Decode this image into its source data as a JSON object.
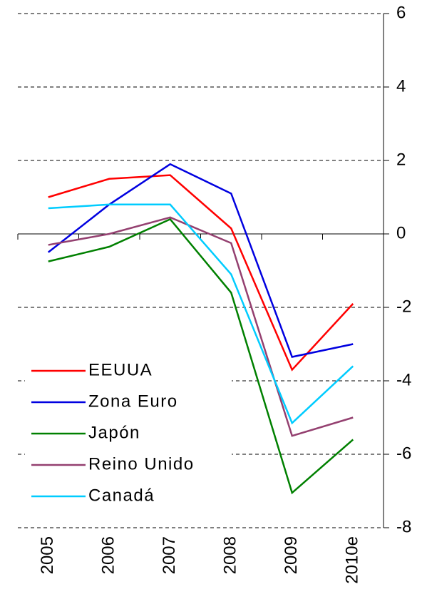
{
  "chart_data": {
    "type": "line",
    "categories": [
      "2005",
      "2006",
      "2007",
      "2008",
      "2009",
      "2010e"
    ],
    "series": [
      {
        "name": "EEUUA",
        "color": "#ff0000",
        "values": [
          1.0,
          1.5,
          1.6,
          0.15,
          -3.7,
          -1.9
        ]
      },
      {
        "name": "Zona Euro",
        "color": "#0000e0",
        "values": [
          -0.5,
          0.8,
          1.9,
          1.1,
          -3.35,
          -3.0
        ]
      },
      {
        "name": "Japón",
        "color": "#008000",
        "values": [
          -0.75,
          -0.35,
          0.4,
          -1.6,
          -7.05,
          -5.6
        ]
      },
      {
        "name": "Reino Unido",
        "color": "#944070",
        "values": [
          -0.3,
          0.0,
          0.45,
          -0.25,
          -5.5,
          -5.0
        ]
      },
      {
        "name": "Canadá",
        "color": "#00ccff",
        "values": [
          0.7,
          0.8,
          0.8,
          -1.1,
          -5.15,
          -3.6
        ]
      }
    ],
    "ylim": [
      -8,
      6
    ],
    "yticks": [
      -8,
      -6,
      -4,
      -2,
      0,
      2,
      4,
      6
    ],
    "grid": true,
    "legend": "lower-left"
  }
}
